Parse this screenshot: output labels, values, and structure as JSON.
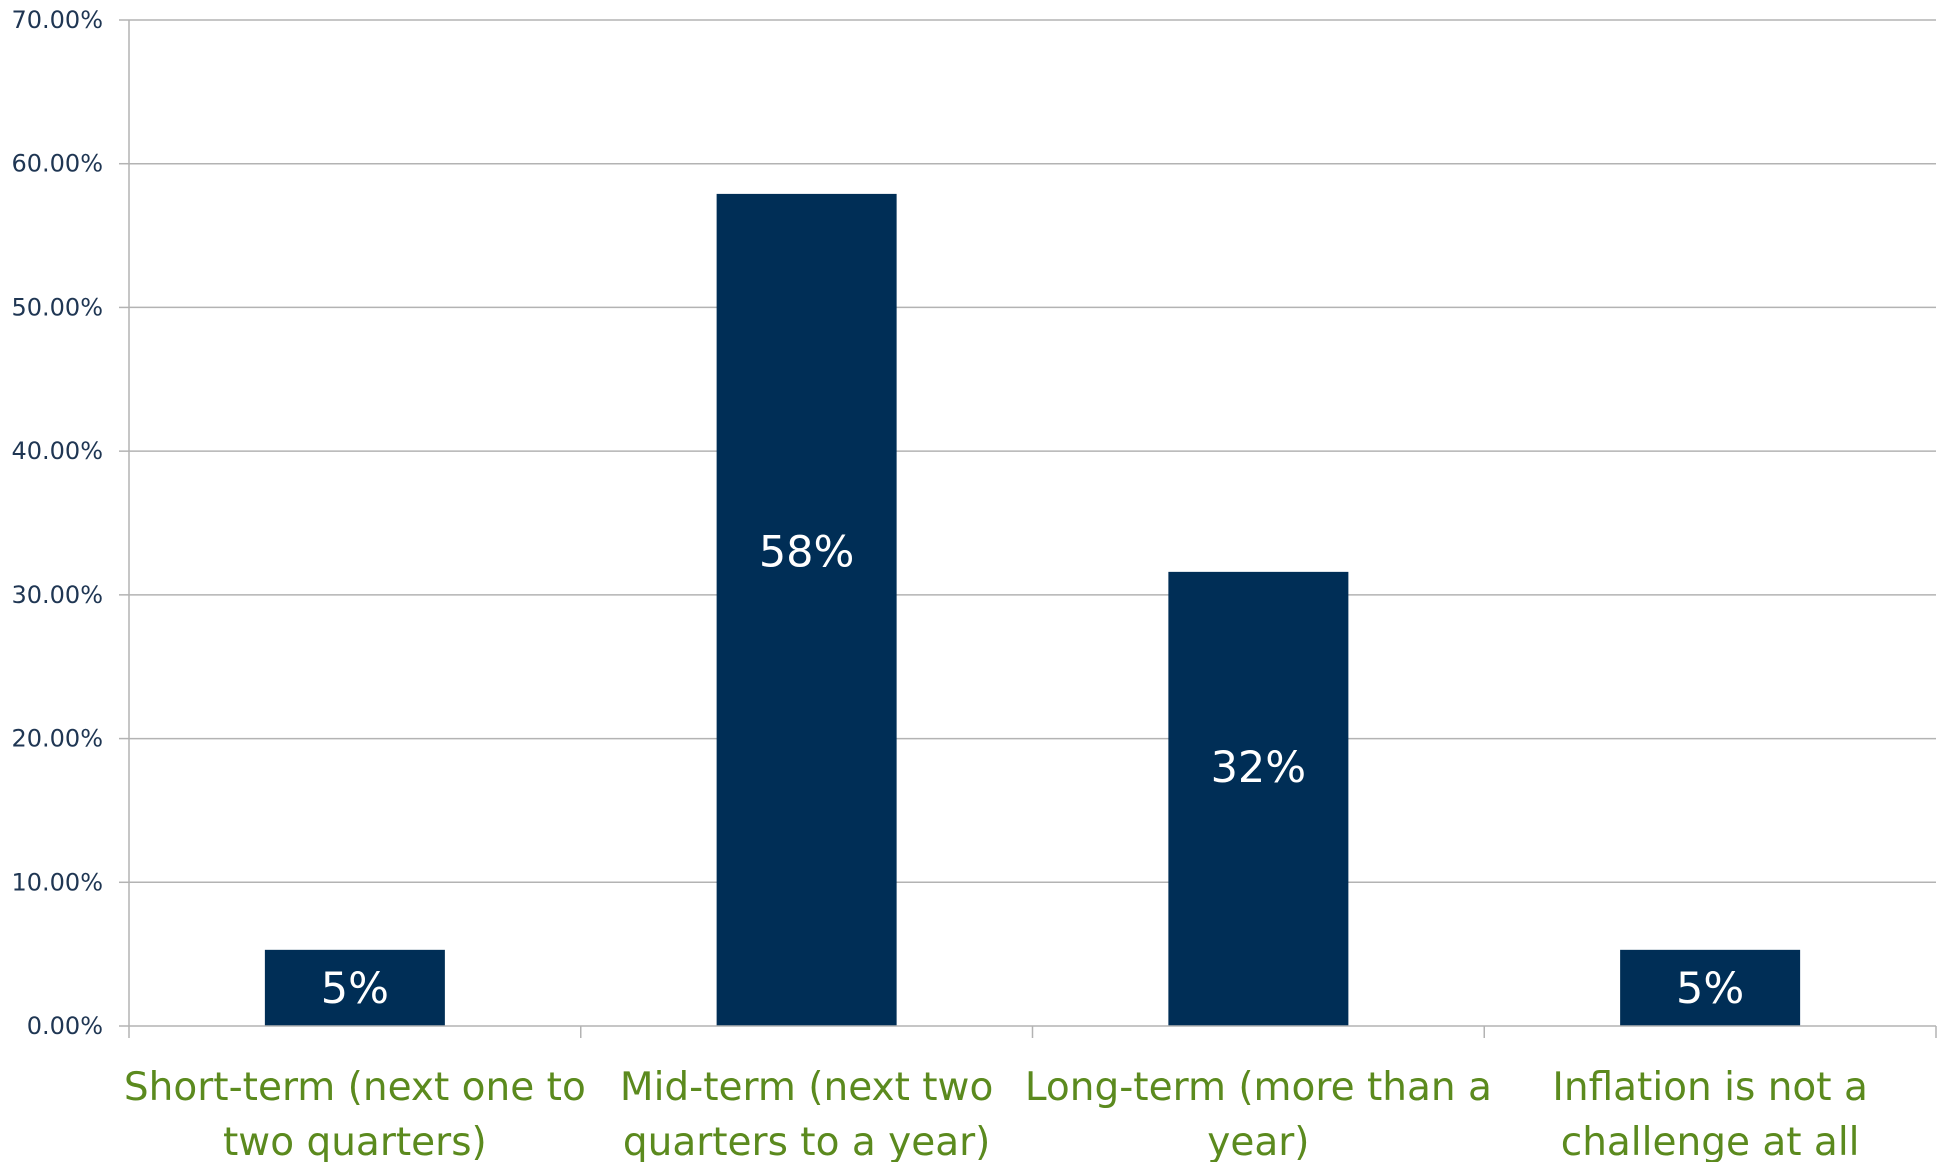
{
  "chart_data": {
    "type": "bar",
    "categories": [
      [
        "Short-term (next one to",
        "two quarters)"
      ],
      [
        "Mid-term (next two",
        "quarters to a year)"
      ],
      [
        "Long-term (more than a",
        "year)"
      ],
      [
        "Inflation is not a",
        "challenge at all"
      ]
    ],
    "values": [
      5.3,
      57.9,
      31.6,
      5.3
    ],
    "data_labels": [
      "5%",
      "58%",
      "32%",
      "5%"
    ],
    "y_ticks": [
      "0.00%",
      "10.00%",
      "20.00%",
      "30.00%",
      "40.00%",
      "50.00%",
      "60.00%",
      "70.00%"
    ],
    "ylim": [
      0,
      70
    ],
    "title": "",
    "xlabel": "",
    "ylabel": "",
    "grid": true,
    "legend": "none",
    "colors": {
      "bar": "#002e56",
      "category_text": "#5b8a1e",
      "tick_text": "#1f3653",
      "gridline": "#b3b3b3",
      "data_label_text": "#ffffff"
    }
  }
}
